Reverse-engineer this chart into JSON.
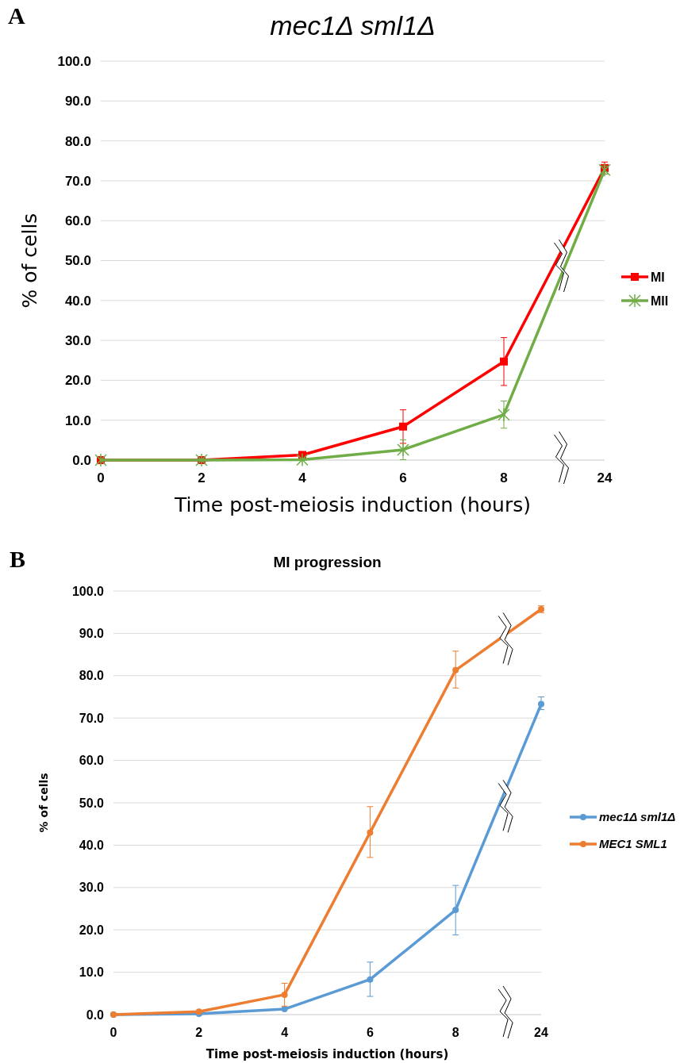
{
  "chart_data": [
    {
      "type": "line",
      "title": "mec1Δ sml1Δ",
      "xlabel": "Time post-meiosis induction (hours)",
      "ylabel": "% of cells",
      "annotations": [
        "A"
      ],
      "categories": [
        "0",
        "2",
        "4",
        "6",
        "8",
        "24"
      ],
      "series": [
        {
          "name": "MI",
          "color": "#ff0000",
          "marker": "square",
          "values": [
            0,
            0,
            1.3,
            8.4,
            24.7,
            73.2
          ],
          "errors": [
            null,
            null,
            0.5,
            4.2,
            6.0,
            1.5
          ]
        },
        {
          "name": "MII",
          "color": "#70ad47",
          "marker": "cross",
          "values": [
            0,
            0,
            0.1,
            2.6,
            11.4,
            72.7
          ],
          "errors": [
            null,
            null,
            null,
            2.5,
            3.4,
            1.0
          ]
        }
      ],
      "ylim": [
        0,
        100
      ],
      "yticks": [
        {
          "value": 0,
          "label": "0.0"
        },
        {
          "value": 10,
          "label": "10.0"
        },
        {
          "value": 20,
          "label": "20.0"
        },
        {
          "value": 30,
          "label": "30.0"
        },
        {
          "value": 40,
          "label": "40.0"
        },
        {
          "value": 50,
          "label": "50.0"
        },
        {
          "value": 60,
          "label": "60.0"
        },
        {
          "value": 70,
          "label": "70.0"
        },
        {
          "value": 80,
          "label": "80.0"
        },
        {
          "value": 90,
          "label": "90.0"
        },
        {
          "value": 100,
          "label": "100.0"
        }
      ],
      "grid": "y",
      "legend": "right"
    },
    {
      "type": "line",
      "title": "MI progression",
      "xlabel": "Time post-meiosis induction (hours)",
      "ylabel": "% of cells",
      "annotations": [
        "B"
      ],
      "categories": [
        "0",
        "2",
        "4",
        "6",
        "8",
        "24"
      ],
      "series": [
        {
          "name": "mec1Δ sml1Δ",
          "color": "#5b9bd5",
          "marker": "circle",
          "values": [
            0,
            0.2,
            1.3,
            8.3,
            24.7,
            73.3
          ],
          "errors": [
            null,
            null,
            null,
            [
              4.3,
              12.4
            ],
            [
              18.8,
              30.5
            ],
            [
              72.0,
              75.0
            ]
          ]
        },
        {
          "name": "MEC1 SML1",
          "color": "#ed7d31",
          "marker": "circle",
          "values": [
            0,
            0.7,
            4.7,
            43.0,
            81.3,
            95.7
          ],
          "errors": [
            null,
            null,
            [
              2.0,
              7.4
            ],
            [
              37.1,
              49.1
            ],
            [
              77.1,
              85.8
            ],
            0.8
          ]
        }
      ],
      "ylim": [
        0,
        100
      ],
      "yticks": [
        {
          "value": 0,
          "label": "0.0"
        },
        {
          "value": 10,
          "label": "10.0"
        },
        {
          "value": 20,
          "label": "20.0"
        },
        {
          "value": 30,
          "label": "30.0"
        },
        {
          "value": 40,
          "label": "40.0"
        },
        {
          "value": 50,
          "label": "50.0"
        },
        {
          "value": 60,
          "label": "60.0"
        },
        {
          "value": 70,
          "label": "70.0"
        },
        {
          "value": 80,
          "label": "80.0"
        },
        {
          "value": 90,
          "label": "90.0"
        },
        {
          "value": 100,
          "label": "100.0"
        }
      ],
      "grid": "y",
      "legend": "right"
    }
  ]
}
